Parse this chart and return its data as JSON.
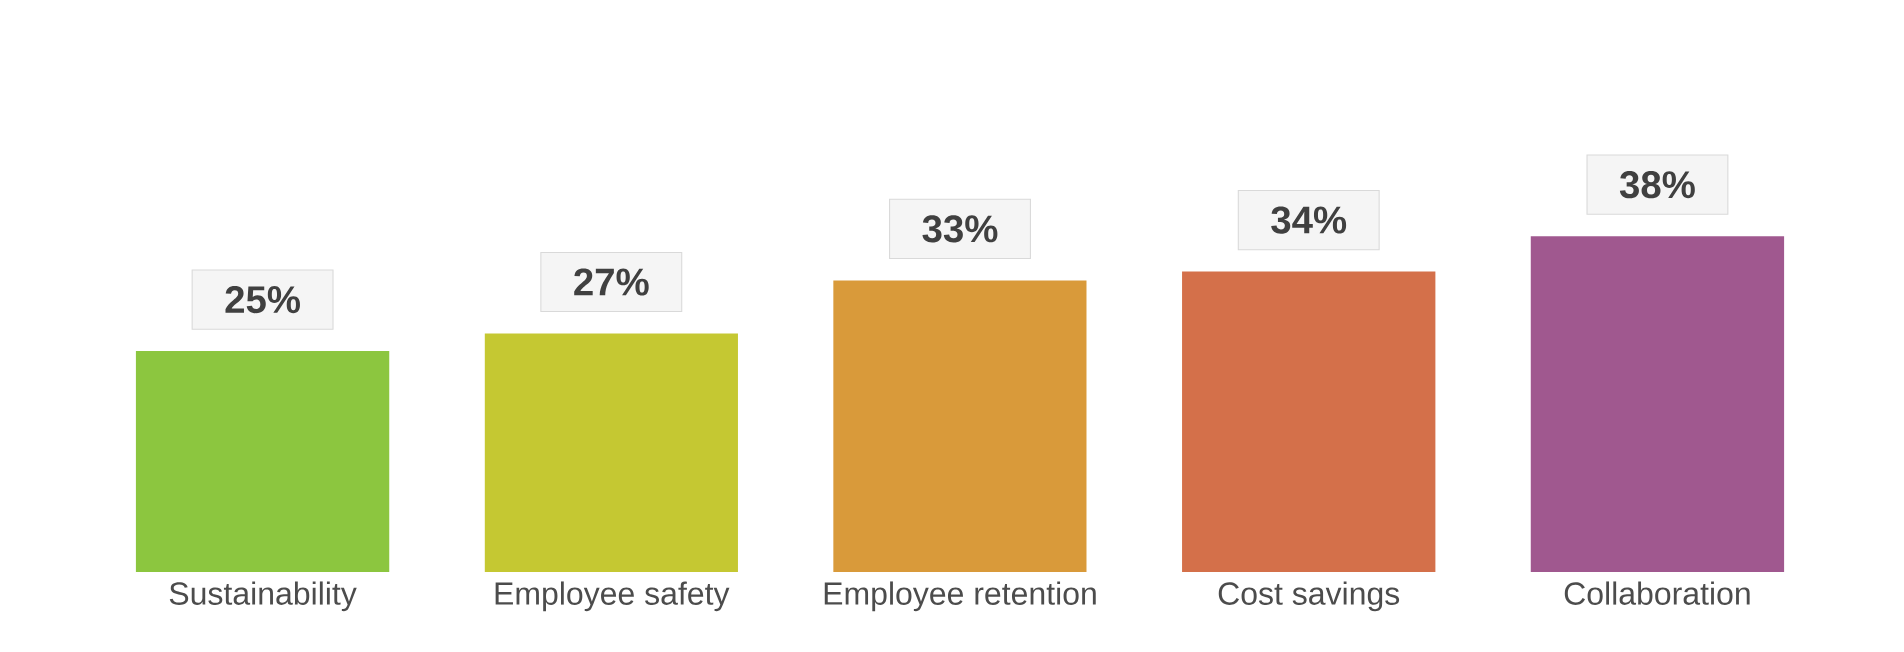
{
  "chart_data": {
    "type": "bar",
    "categories": [
      "Sustainability",
      "Employee safety",
      "Employee retention",
      "Cost savings",
      "Collaboration"
    ],
    "values": [
      25,
      27,
      33,
      34,
      38
    ],
    "value_labels": [
      "25%",
      "27%",
      "33%",
      "34%",
      "38%"
    ],
    "colors": [
      "#8cc63f",
      "#c5c832",
      "#d99a3a",
      "#d4704a",
      "#a0588f"
    ]
  }
}
